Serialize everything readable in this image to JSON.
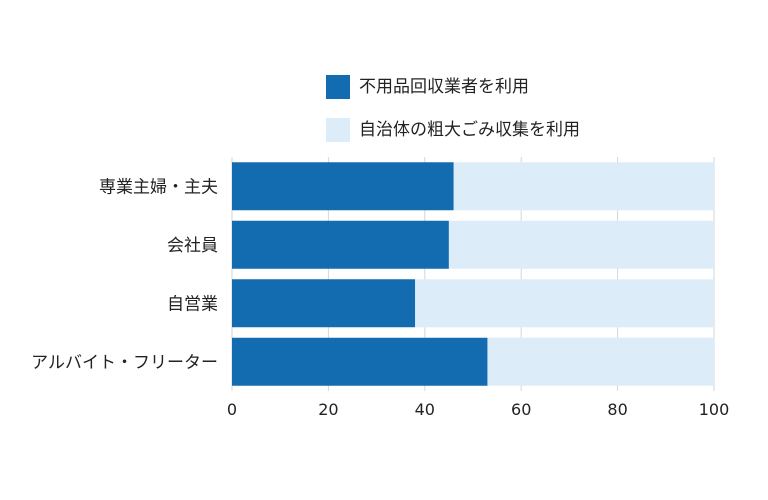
{
  "chart_data": {
    "type": "bar",
    "orientation": "horizontal",
    "stacked": true,
    "categories": [
      "専業主婦・主夫",
      "会社員",
      "自営業",
      "アルバイト・フリーター"
    ],
    "series": [
      {
        "name": "不用品回収業者を利用",
        "color": "#136bb0",
        "values": [
          46,
          45,
          38,
          53
        ]
      },
      {
        "name": "自治体の粗大ごみ収集を利用",
        "color": "#dcedf9",
        "values": [
          54,
          55,
          62,
          47
        ]
      }
    ],
    "xlim": [
      0,
      100
    ],
    "xticks": [
      "0",
      "20",
      "40",
      "60",
      "80",
      "100"
    ],
    "grid": true,
    "legend_position": "top"
  }
}
